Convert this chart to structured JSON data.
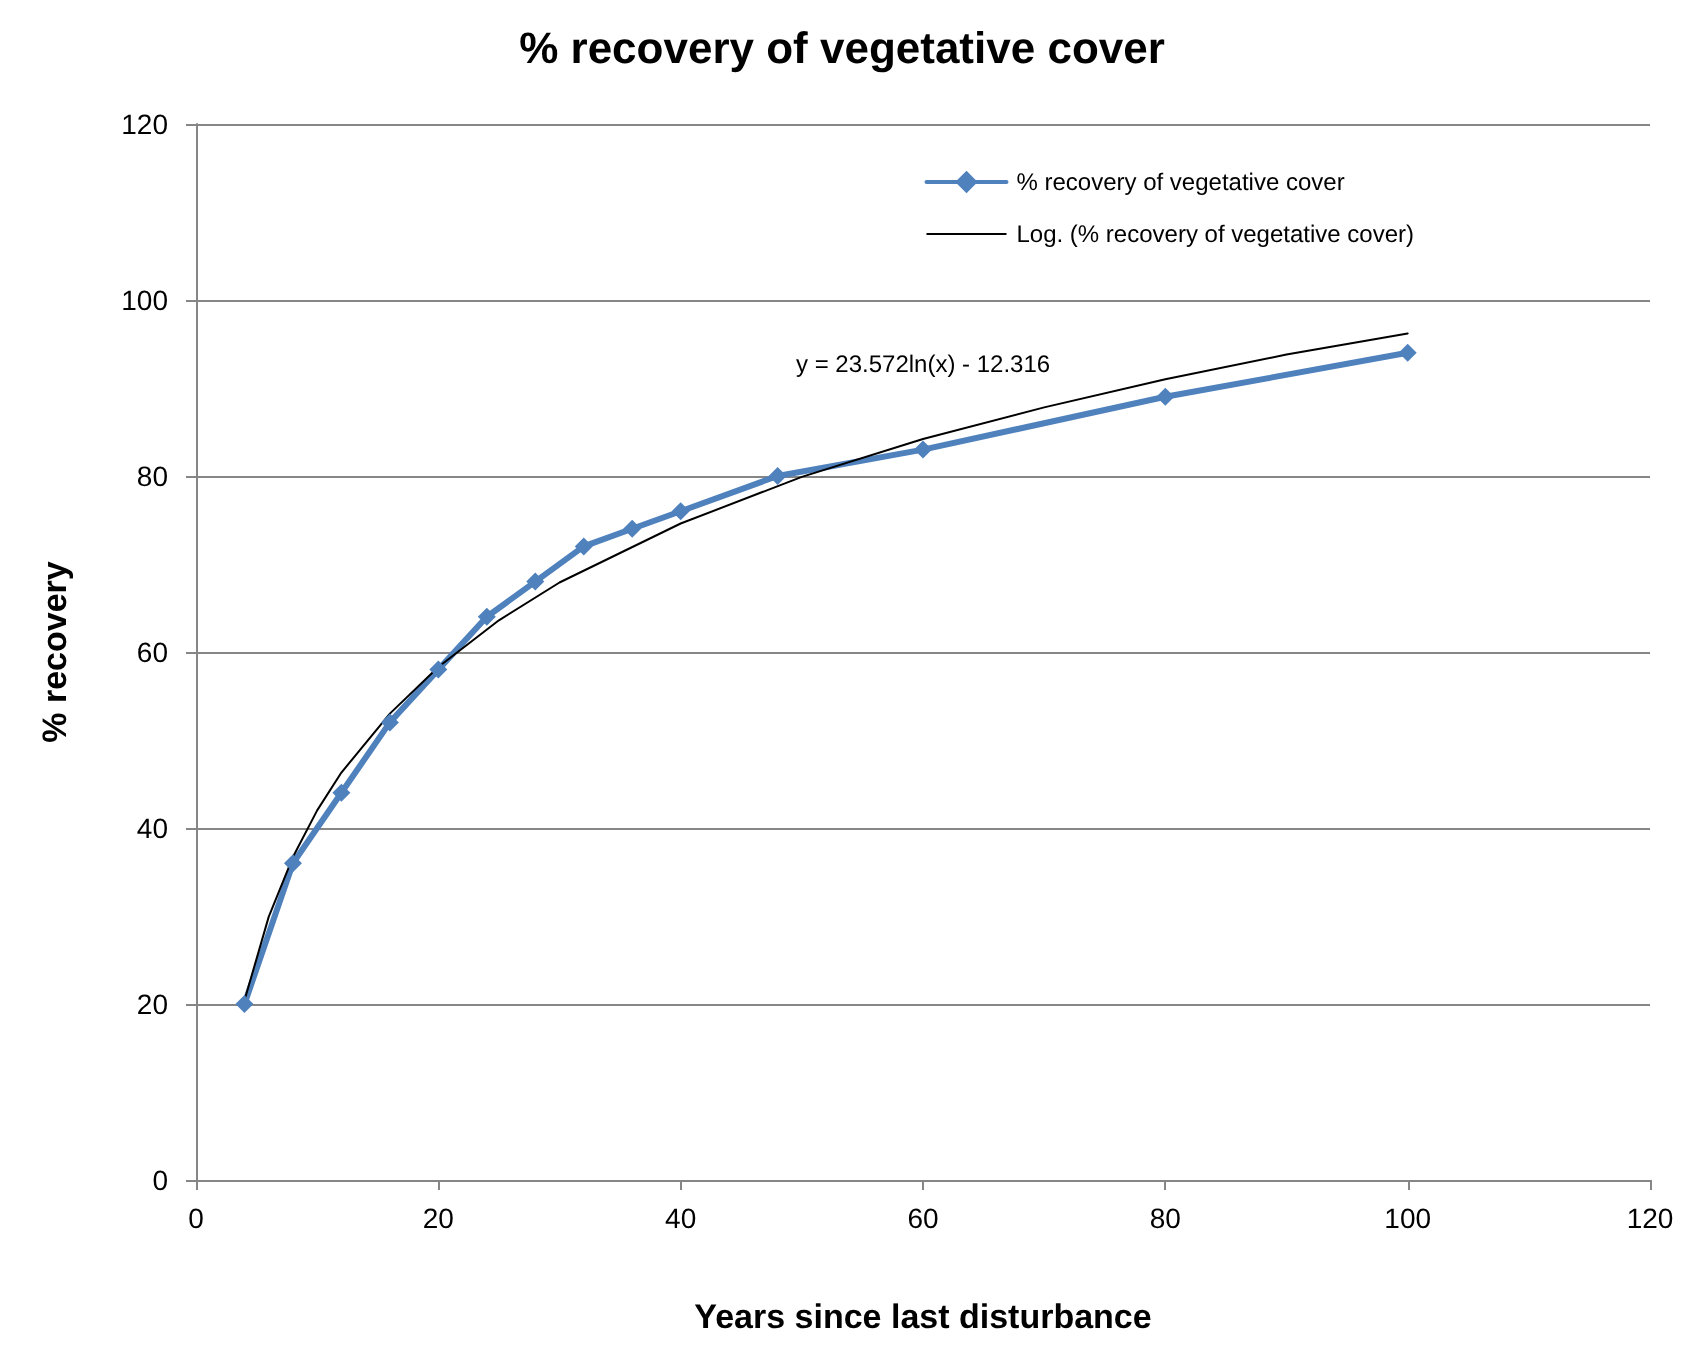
{
  "chart_data": {
    "type": "line",
    "title": "% recovery of vegetative cover",
    "xlabel": "Years since last disturbance",
    "ylabel": "% recovery",
    "xlim": [
      0,
      120
    ],
    "xticks": [
      0,
      20,
      40,
      60,
      80,
      100,
      120
    ],
    "ylim": [
      0,
      120
    ],
    "yticks": [
      0,
      20,
      40,
      60,
      80,
      100,
      120
    ],
    "grid": "y",
    "legend": "top right",
    "series": [
      {
        "name": "% recovery of vegetative cover",
        "color": "#4f81bd",
        "marker": "diamond",
        "line_style": "solid",
        "x": [
          4,
          8,
          12,
          16,
          20,
          24,
          28,
          32,
          36,
          40,
          48,
          60,
          80,
          100
        ],
        "values": [
          20,
          36,
          44,
          52,
          58,
          64,
          68,
          72,
          74,
          76,
          80,
          83,
          89,
          94
        ]
      },
      {
        "name": "Log. (% recovery of vegetative cover)",
        "color": "#000000",
        "marker": "none",
        "line_style": "solid",
        "x": [
          4,
          6,
          8,
          10,
          12,
          16,
          20,
          25,
          30,
          40,
          50,
          60,
          70,
          80,
          90,
          100
        ],
        "values": [
          20.4,
          29.9,
          36.7,
          42,
          46.3,
          53,
          58.3,
          63.6,
          67.9,
          74.6,
          79.9,
          84.2,
          87.8,
          91,
          93.8,
          96.2
        ]
      }
    ],
    "annotations": [
      "y = 23.572ln(x) - 12.316"
    ]
  }
}
